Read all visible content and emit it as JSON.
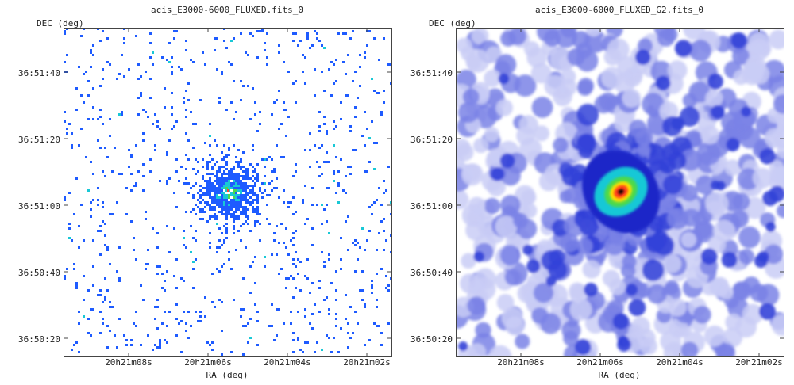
{
  "chart_data": [
    {
      "type": "heatmap",
      "variant": "binned-counts",
      "title": "acis_E3000-6000_FLUXED.fits_0",
      "xlabel": "RA (deg)",
      "ylabel": "DEC (deg)",
      "x_ticks": [
        "20h21m08s",
        "20h21m06s",
        "20h21m04s",
        "20h21m02s"
      ],
      "y_ticks": [
        "36:51:40",
        "36:51:20",
        "36:51:00",
        "36:50:40",
        "36:50:20"
      ],
      "source_center": {
        "ra": "20h21m05.5s",
        "dec": "36:51:04"
      },
      "colormap": [
        "#ffffff",
        "#1e5bff",
        "#19c8d6",
        "#4cd94c",
        "#ff4a2a"
      ]
    },
    {
      "type": "heatmap",
      "variant": "smoothed",
      "title": "acis_E3000-6000_FLUXED_G2.fits_0",
      "xlabel": "RA (deg)",
      "ylabel": "DEC (deg)",
      "x_ticks": [
        "20h21m08s",
        "20h21m06s",
        "20h21m04s",
        "20h21m02s"
      ],
      "y_ticks": [
        "36:51:40",
        "36:51:20",
        "36:51:00",
        "36:50:40",
        "36:50:20"
      ],
      "source_center": {
        "ra": "20h21m05.5s",
        "dec": "36:51:04"
      },
      "colormap": [
        "#ffffff",
        "#c9ccf6",
        "#7a82e6",
        "#3342d8",
        "#1b28c8",
        "#19c8d6",
        "#4cd94c",
        "#ffe100",
        "#ff3b1a",
        "#000000"
      ]
    }
  ]
}
